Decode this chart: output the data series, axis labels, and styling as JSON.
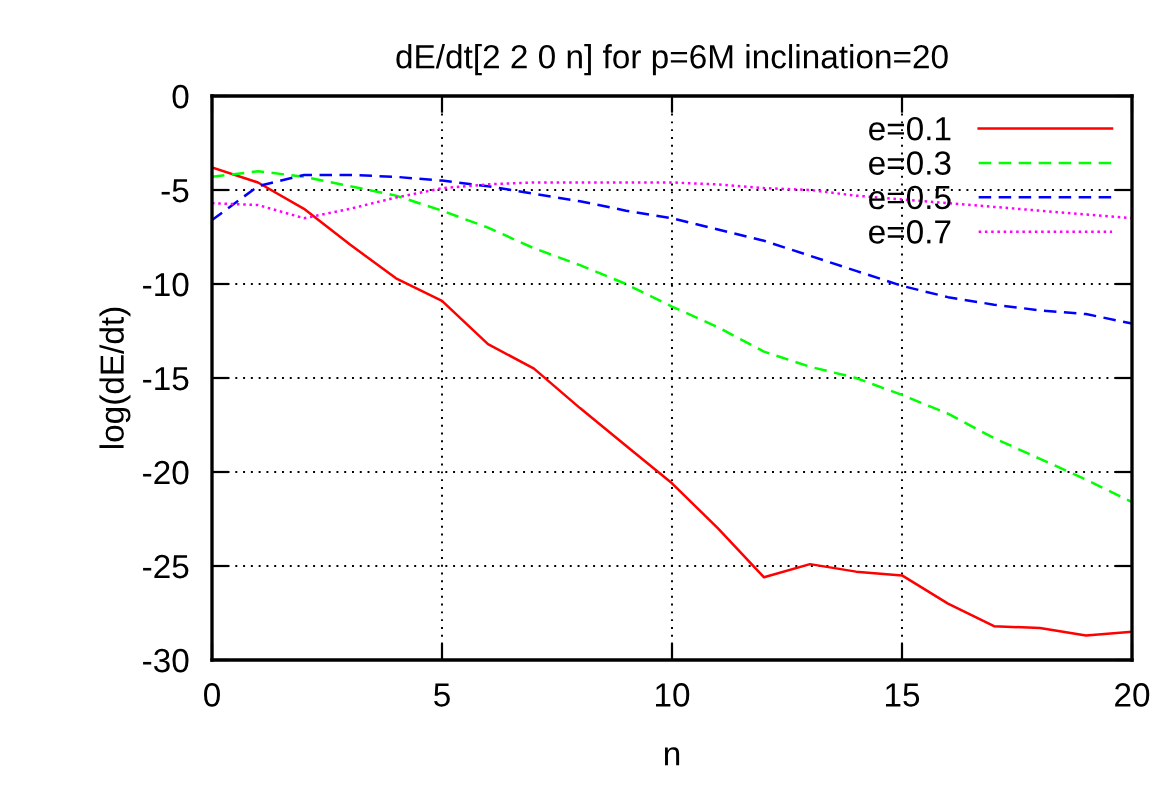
{
  "chart_data": {
    "type": "line",
    "title": "dE/dt[2 2 0 n] for p=6M inclination=20",
    "xlabel": "n",
    "ylabel": "log(dE/dt)",
    "x": [
      0,
      1,
      2,
      3,
      4,
      5,
      6,
      7,
      8,
      9,
      10,
      11,
      12,
      13,
      14,
      15,
      16,
      17,
      18,
      19,
      20
    ],
    "series": [
      {
        "name": "e=0.1",
        "color": "#ff0000",
        "line_style": "solid",
        "values": [
          -3.8,
          -4.6,
          -6.0,
          -7.9,
          -9.7,
          -10.9,
          -13.2,
          -14.5,
          -16.6,
          -18.6,
          -20.6,
          -23.0,
          -25.6,
          -24.9,
          -25.3,
          -25.5,
          -27.0,
          -28.2,
          -28.3,
          -28.7,
          -28.5
        ]
      },
      {
        "name": "e=0.3",
        "color": "#00ff00",
        "line_style": "dashed",
        "values": [
          -4.3,
          -4.0,
          -4.3,
          -4.8,
          -5.3,
          -6.1,
          -7.0,
          -8.1,
          -9.0,
          -10.0,
          -11.2,
          -12.3,
          -13.6,
          -14.4,
          -15.0,
          -15.9,
          -16.9,
          -18.2,
          -19.3,
          -20.4,
          -21.6
        ]
      },
      {
        "name": "e=0.5",
        "color": "#0000ff",
        "line_style": "dashed",
        "values": [
          -6.6,
          -4.8,
          -4.2,
          -4.2,
          -4.3,
          -4.5,
          -4.8,
          -5.2,
          -5.6,
          -6.1,
          -6.5,
          -7.1,
          -7.7,
          -8.5,
          -9.3,
          -10.1,
          -10.7,
          -11.1,
          -11.4,
          -11.6,
          -12.1
        ]
      },
      {
        "name": "e=0.7",
        "color": "#ff00ff",
        "line_style": "dotted",
        "values": [
          -5.7,
          -5.8,
          -6.5,
          -6.0,
          -5.4,
          -4.9,
          -4.7,
          -4.6,
          -4.6,
          -4.6,
          -4.6,
          -4.7,
          -4.9,
          -5.0,
          -5.3,
          -5.5,
          -5.7,
          -5.9,
          -6.1,
          -6.3,
          -6.5
        ]
      }
    ],
    "xlim": [
      0,
      20
    ],
    "xticks": [
      0,
      5,
      10,
      15,
      20
    ],
    "ylim": [
      -30,
      0
    ],
    "yticks": [
      -30,
      -25,
      -20,
      -15,
      -10,
      -5,
      0
    ],
    "grid": true,
    "legend": "top right"
  }
}
